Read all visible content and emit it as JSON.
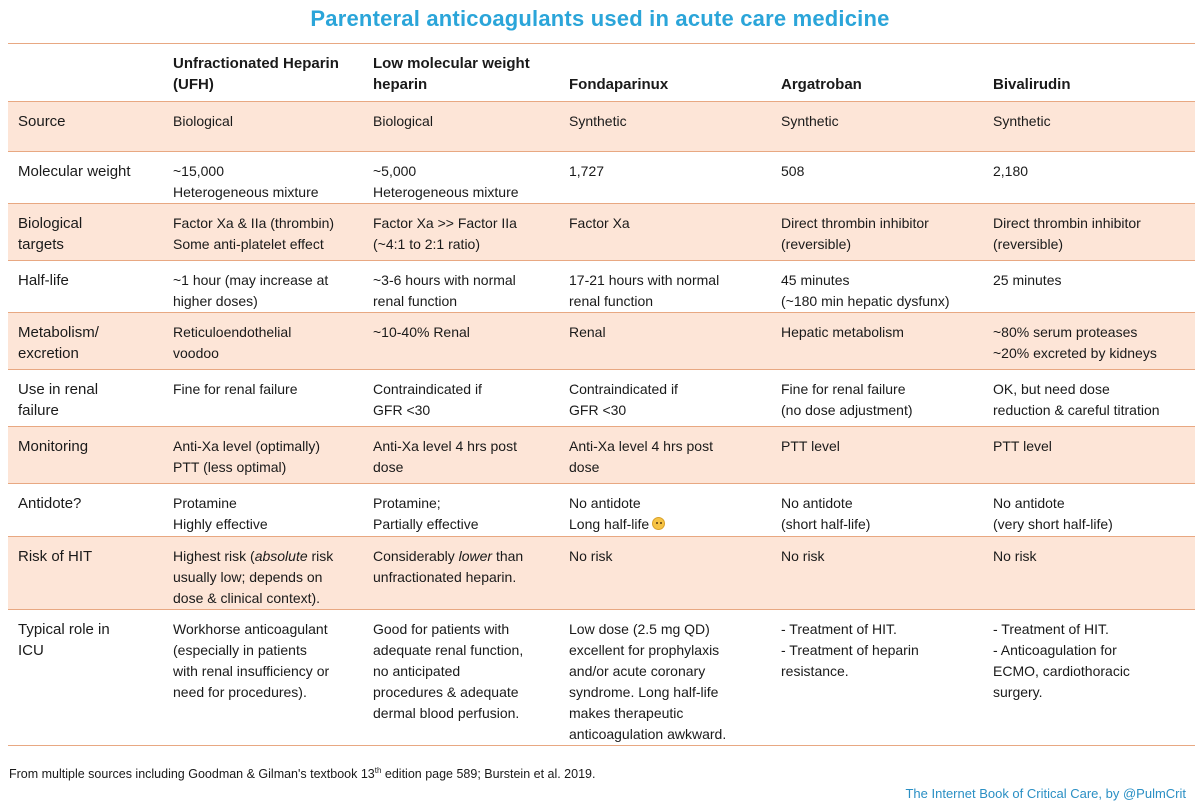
{
  "title": "Parenteral anticoagulants used in acute care medicine",
  "columns": [
    {
      "lines": [
        "Unfractionated",
        "Heparin (UFH)"
      ]
    },
    {
      "lines": [
        "Low molecular",
        "weight heparin"
      ]
    },
    {
      "lines": [
        "Fondaparinux"
      ]
    },
    {
      "lines": [
        "Argatroban"
      ]
    },
    {
      "lines": [
        "Bivalirudin"
      ]
    }
  ],
  "rows": [
    {
      "label": [
        "Source"
      ],
      "cells": [
        [
          "Biological"
        ],
        [
          "Biological"
        ],
        [
          "Synthetic"
        ],
        [
          "Synthetic"
        ],
        [
          "Synthetic"
        ]
      ]
    },
    {
      "label": [
        "Molecular weight"
      ],
      "cells": [
        [
          "~15,000",
          "Heterogeneous mixture"
        ],
        [
          "~5,000",
          "Heterogeneous mixture"
        ],
        [
          "1,727"
        ],
        [
          "508"
        ],
        [
          "2,180"
        ]
      ]
    },
    {
      "label": [
        "Biological",
        "targets"
      ],
      "cells": [
        [
          "Factor Xa & IIa (thrombin)",
          "Some anti-platelet effect"
        ],
        [
          "Factor Xa >> Factor IIa",
          "(~4:1 to 2:1 ratio)"
        ],
        [
          "Factor Xa"
        ],
        [
          "Direct thrombin inhibitor",
          "(reversible)"
        ],
        [
          "Direct thrombin inhibitor",
          "(reversible)"
        ]
      ]
    },
    {
      "label": [
        "Half-life"
      ],
      "cells": [
        [
          "~1 hour (may increase at",
          "higher doses)"
        ],
        [
          "~3-6 hours with normal",
          "renal function"
        ],
        [
          "17-21 hours with normal",
          "renal function"
        ],
        [
          "45 minutes",
          "(~180 min hepatic dysfunx)"
        ],
        [
          "25 minutes"
        ]
      ]
    },
    {
      "label": [
        "Metabolism/",
        "excretion"
      ],
      "cells": [
        [
          "Reticuloendothelial",
          "voodoo"
        ],
        [
          "~10-40% Renal"
        ],
        [
          "Renal"
        ],
        [
          "Hepatic metabolism"
        ],
        [
          "~80% serum proteases",
          "~20% excreted by kidneys"
        ]
      ]
    },
    {
      "label": [
        "Use in renal",
        "failure"
      ],
      "cells": [
        [
          "Fine for renal failure"
        ],
        [
          "Contraindicated if",
          "GFR <30"
        ],
        [
          "Contraindicated if",
          "GFR <30"
        ],
        [
          "Fine for renal failure",
          "(no dose adjustment)"
        ],
        [
          "OK, but need dose",
          "reduction & careful titration"
        ]
      ]
    },
    {
      "label": [
        "Monitoring"
      ],
      "cells": [
        [
          "Anti-Xa level (optimally)",
          "PTT (less optimal)"
        ],
        [
          "Anti-Xa level 4 hrs post",
          "dose"
        ],
        [
          "Anti-Xa level 4 hrs post",
          "dose"
        ],
        [
          "PTT level"
        ],
        [
          "PTT level"
        ]
      ]
    },
    {
      "label": [
        "Antidote?"
      ],
      "cells": [
        [
          "Protamine",
          "Highly effective"
        ],
        [
          "Protamine;",
          "Partially effective"
        ],
        [
          "No antidote",
          "Long half-life"
        ],
        [
          "No antidote",
          "(short half-life)"
        ],
        [
          "No antidote",
          "(very short half-life)"
        ]
      ]
    },
    {
      "label": [
        "Risk of HIT"
      ],
      "cells": [
        [
          "Highest risk (absolute risk",
          "usually low; depends on",
          "dose & clinical context)."
        ],
        [
          "Considerably lower than",
          "unfractionated heparin."
        ],
        [
          "No risk"
        ],
        [
          "No risk"
        ],
        [
          "No risk"
        ]
      ]
    },
    {
      "label": [
        "Typical role in",
        "ICU"
      ],
      "cells": [
        [
          "Workhorse anticoagulant",
          "(especially in patients",
          "with renal insufficiency or",
          "need for procedures)."
        ],
        [
          "Good for patients with",
          "adequate renal function,",
          "no anticipated",
          "procedures & adequate",
          "dermal blood perfusion."
        ],
        [
          "Low dose (2.5 mg QD)",
          "excellent for prophylaxis",
          "and/or acute coronary",
          "syndrome.  Long half-life",
          "makes therapeutic",
          "anticoagulation awkward."
        ],
        [
          "- Treatment of HIT.",
          "- Treatment of heparin",
          "resistance."
        ],
        [
          "- Treatment of HIT.",
          "- Anticoagulation for",
          "ECMO, cardiothoracic",
          "surgery."
        ]
      ]
    }
  ],
  "footer": {
    "source_before": "From multiple sources including Goodman & Gilman's textbook 13",
    "source_sup": "th",
    "source_after": " edition page 589; Burstein et al. 2019.",
    "credit": "The Internet Book of Critical Care, by @PulmCrit"
  },
  "colors": {
    "title": "#2ba5d9",
    "shade": "#fde5d7",
    "rule": "#e8a882",
    "credit": "#2a8fc4"
  }
}
